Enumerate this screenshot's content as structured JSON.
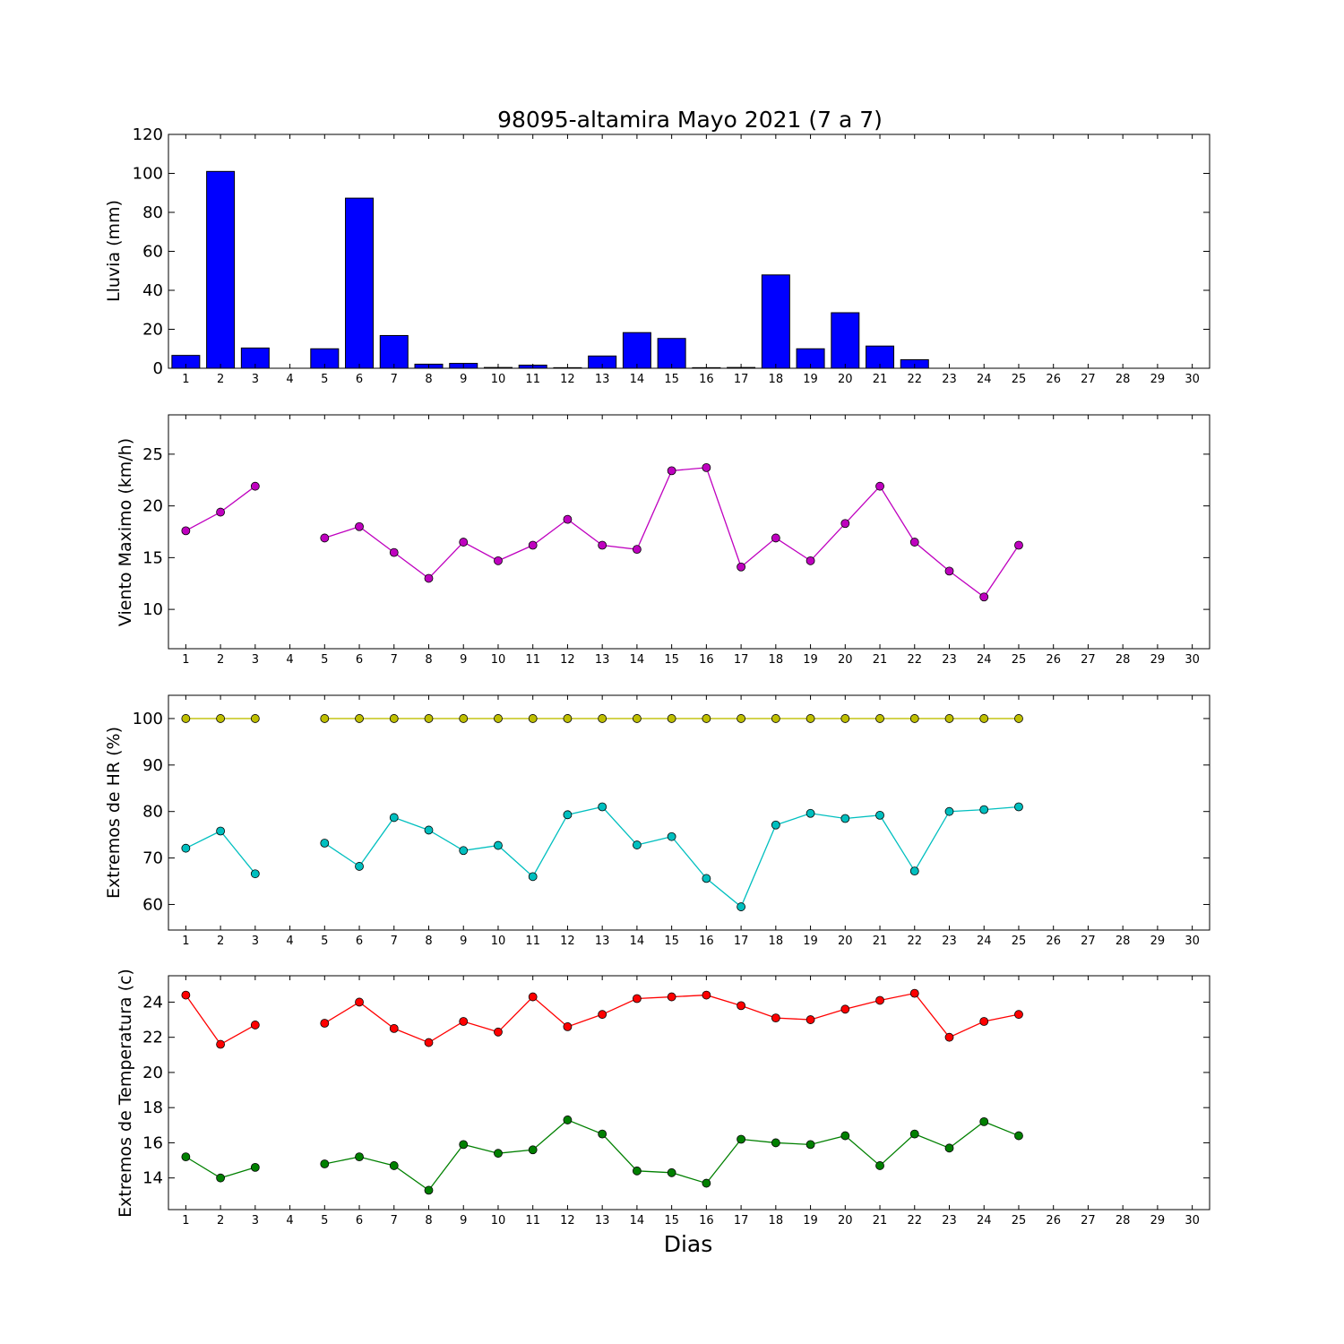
{
  "title": "98095-altamira Mayo 2021  (7 a 7)",
  "xlabel": "Dias",
  "colors": {
    "rain": "#0000ff",
    "wind": "#bf00bf",
    "hr_max": "#bfbf00",
    "hr_min": "#00bfbf",
    "t_max": "#ff0000",
    "t_min": "#008000"
  },
  "chart_data": [
    {
      "type": "bar",
      "ylabel": "Lluvia (mm)",
      "categories": [
        "1",
        "2",
        "3",
        "4",
        "5",
        "6",
        "7",
        "8",
        "9",
        "10",
        "11",
        "12",
        "13",
        "14",
        "15",
        "16",
        "17",
        "18",
        "19",
        "20",
        "21",
        "22",
        "23",
        "24",
        "25",
        "26",
        "27",
        "28",
        "29",
        "30"
      ],
      "xlim": [
        0.5,
        30.5
      ],
      "ylim": [
        0,
        120
      ],
      "yticks": [
        0,
        20,
        40,
        60,
        80,
        100,
        120
      ],
      "series": [
        {
          "values": [
            6.6,
            101,
            10.4,
            null,
            10,
            87.3,
            16.8,
            2.1,
            2.5,
            0.4,
            1.6,
            0.3,
            6.3,
            18.3,
            15.3,
            0.3,
            0.4,
            47.9,
            10,
            28.5,
            11.4,
            4.4,
            0,
            0,
            0,
            null,
            null,
            null,
            null,
            null
          ],
          "color": "#0000ff"
        }
      ]
    },
    {
      "type": "line",
      "ylabel": "Viento Maximo (km/h)",
      "categories": [
        "1",
        "2",
        "3",
        "4",
        "5",
        "6",
        "7",
        "8",
        "9",
        "10",
        "11",
        "12",
        "13",
        "14",
        "15",
        "16",
        "17",
        "18",
        "19",
        "20",
        "21",
        "22",
        "23",
        "24",
        "25",
        "26",
        "27",
        "28",
        "29",
        "30"
      ],
      "xlim": [
        0.5,
        30.5
      ],
      "ylim": [
        6.2,
        28.8
      ],
      "yticks": [
        10,
        15,
        20,
        25
      ],
      "series": [
        {
          "values": [
            17.6,
            19.4,
            21.9,
            null,
            16.9,
            18,
            15.5,
            13,
            16.5,
            14.7,
            16.2,
            18.7,
            16.2,
            15.8,
            23.4,
            23.7,
            14.1,
            16.9,
            14.7,
            18.3,
            21.9,
            16.5,
            13.7,
            11.2,
            16.2,
            null,
            null,
            null,
            null,
            null
          ],
          "color": "#bf00bf"
        }
      ]
    },
    {
      "type": "line",
      "ylabel": "Extremos de HR (%)",
      "categories": [
        "1",
        "2",
        "3",
        "4",
        "5",
        "6",
        "7",
        "8",
        "9",
        "10",
        "11",
        "12",
        "13",
        "14",
        "15",
        "16",
        "17",
        "18",
        "19",
        "20",
        "21",
        "22",
        "23",
        "24",
        "25",
        "26",
        "27",
        "28",
        "29",
        "30"
      ],
      "xlim": [
        0.5,
        30.5
      ],
      "ylim": [
        54.5,
        105
      ],
      "yticks": [
        60,
        70,
        80,
        90,
        100
      ],
      "series": [
        {
          "values": [
            100,
            100,
            100,
            null,
            100,
            100,
            100,
            100,
            100,
            100,
            100,
            100,
            100,
            100,
            100,
            100,
            100,
            100,
            100,
            100,
            100,
            100,
            100,
            100,
            100,
            null,
            null,
            null,
            null,
            null
          ],
          "color": "#bfbf00"
        },
        {
          "values": [
            72.1,
            75.8,
            66.6,
            null,
            73.2,
            68.2,
            78.7,
            76,
            71.6,
            72.7,
            66,
            79.3,
            81,
            72.8,
            74.6,
            65.6,
            59.5,
            77.1,
            79.6,
            78.5,
            79.2,
            67.2,
            80,
            80.4,
            81,
            null,
            null,
            null,
            null,
            null
          ],
          "color": "#00bfbf"
        }
      ]
    },
    {
      "type": "line",
      "ylabel": "Extremos de Temperatura (c)",
      "categories": [
        "1",
        "2",
        "3",
        "4",
        "5",
        "6",
        "7",
        "8",
        "9",
        "10",
        "11",
        "12",
        "13",
        "14",
        "15",
        "16",
        "17",
        "18",
        "19",
        "20",
        "21",
        "22",
        "23",
        "24",
        "25",
        "26",
        "27",
        "28",
        "29",
        "30"
      ],
      "xlim": [
        0.5,
        30.5
      ],
      "ylim": [
        12.2,
        25.5
      ],
      "yticks": [
        14,
        16,
        18,
        20,
        22,
        24
      ],
      "series": [
        {
          "values": [
            24.4,
            21.6,
            22.7,
            null,
            22.8,
            24,
            22.5,
            21.7,
            22.9,
            22.3,
            24.3,
            22.6,
            23.3,
            24.2,
            24.3,
            24.4,
            23.8,
            23.1,
            23,
            23.6,
            24.1,
            24.5,
            22,
            22.9,
            23.3,
            null,
            null,
            null,
            null,
            null
          ],
          "color": "#ff0000"
        },
        {
          "values": [
            15.2,
            14,
            14.6,
            null,
            14.8,
            15.2,
            14.7,
            13.3,
            15.9,
            15.4,
            15.6,
            17.3,
            16.5,
            14.4,
            14.3,
            13.7,
            16.2,
            16,
            15.9,
            16.4,
            14.7,
            16.5,
            15.7,
            17.2,
            16.4,
            null,
            null,
            null,
            null,
            null
          ],
          "color": "#008000"
        }
      ]
    }
  ]
}
